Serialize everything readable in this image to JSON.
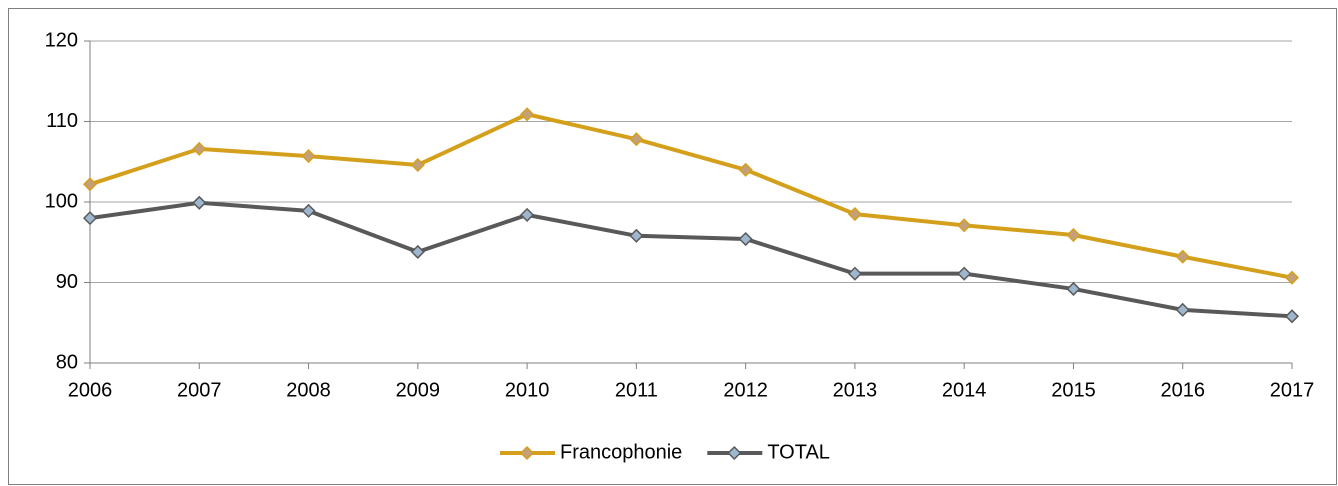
{
  "chart_data": {
    "type": "line",
    "categories": [
      "2006",
      "2007",
      "2008",
      "2009",
      "2010",
      "2011",
      "2012",
      "2013",
      "2014",
      "2015",
      "2016",
      "2017"
    ],
    "series": [
      {
        "name": "Francophonie",
        "color": "#d4a01c",
        "marker_color": "#c4a07a",
        "values": [
          102.2,
          106.6,
          105.7,
          104.6,
          110.9,
          107.8,
          104.0,
          98.5,
          97.1,
          95.9,
          93.2,
          90.6
        ]
      },
      {
        "name": "TOTAL",
        "color": "#595959",
        "marker_color": "#9fb6cf",
        "values": [
          98.0,
          99.9,
          98.9,
          93.8,
          98.4,
          95.8,
          95.4,
          91.1,
          91.1,
          89.2,
          86.6,
          85.8
        ]
      }
    ],
    "ylim": [
      80,
      120
    ],
    "yticks": [
      80,
      90,
      100,
      110,
      120
    ],
    "grid": true,
    "legend": "bottom"
  }
}
